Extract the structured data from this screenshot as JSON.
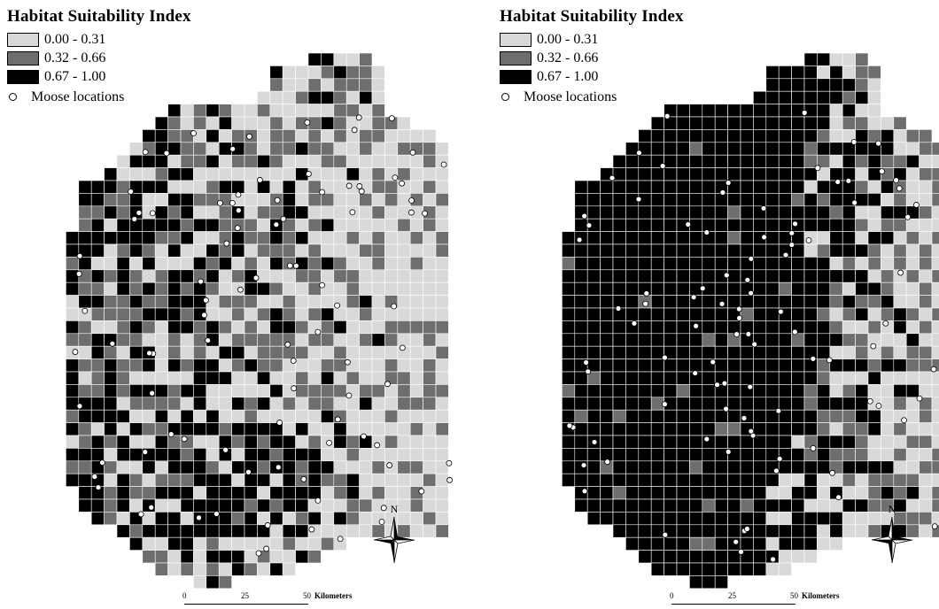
{
  "maps": [
    {
      "title": "Habitat Suitability Index",
      "legend": {
        "classes": [
          {
            "label": "0.00 - 0.31",
            "color": "#d9d9d9"
          },
          {
            "label": "0.32 - 0.66",
            "color": "#6e6e6e"
          },
          {
            "label": "0.67 - 1.00",
            "color": "#000000"
          }
        ],
        "points_label": "Moose locations",
        "points_symbol": "open-circle"
      },
      "north_label": "N",
      "scalebar": {
        "ticks": [
          "0",
          "25",
          "50"
        ],
        "units": "Kilometers"
      },
      "dominant_class": "mixed: high suitability west, low suitability east"
    },
    {
      "title": "Habitat Suitability Index",
      "legend": {
        "classes": [
          {
            "label": "0.00 - 0.31",
            "color": "#d9d9d9"
          },
          {
            "label": "0.32 - 0.66",
            "color": "#6e6e6e"
          },
          {
            "label": "0.67 - 1.00",
            "color": "#000000"
          }
        ],
        "points_label": "Moose locations",
        "points_symbol": "open-circle"
      },
      "north_label": "N",
      "scalebar": {
        "ticks": [
          "0",
          "25",
          "50"
        ],
        "units": "Kilometers"
      },
      "dominant_class": "mostly high suitability, medium/low in the east"
    }
  ]
}
